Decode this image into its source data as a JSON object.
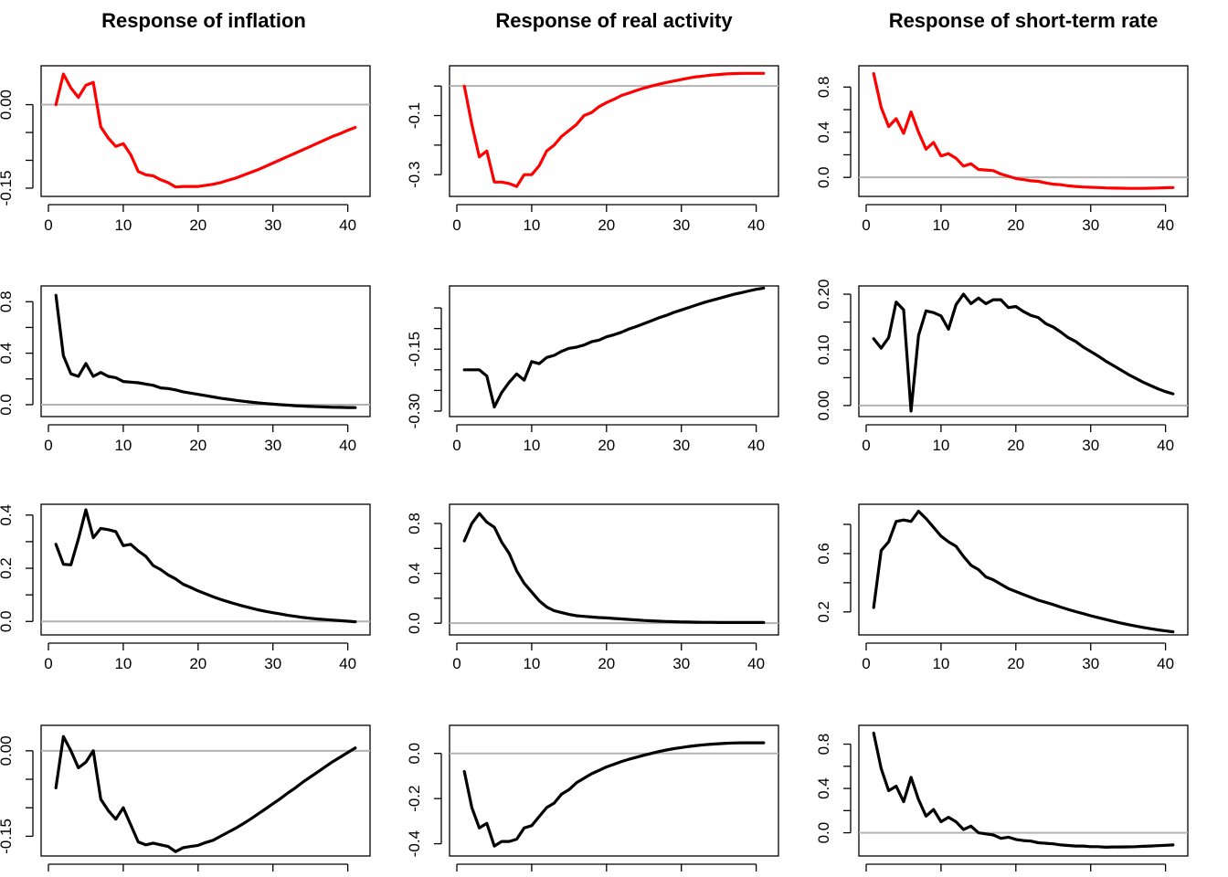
{
  "chart_data": {
    "type": "line",
    "layout": {
      "rows": 4,
      "columns": 3
    },
    "column_titles": [
      "Response of inflation",
      "Response of real activity",
      "Response of short-term rate"
    ],
    "colors": {
      "highlight": "#ff0000",
      "line": "#000000",
      "zero_line": "#b3b3b3",
      "axis": "#000000"
    },
    "x_ticks": [
      0,
      10,
      20,
      30,
      40
    ],
    "panels": [
      {
        "row": 1,
        "col": 1,
        "color": "#ff0000",
        "xlim": [
          0,
          42
        ],
        "ylim": [
          -0.155,
          0.06
        ],
        "yticks": [
          0.0,
          -0.05,
          -0.1,
          -0.15
        ],
        "ytick_labels": [
          "0.00",
          "",
          "",
          "-0.15"
        ],
        "xtick_labels_shown": true,
        "values": [
          0.0,
          0.055,
          0.03,
          0.013,
          0.035,
          0.04,
          -0.04,
          -0.06,
          -0.075,
          -0.07,
          -0.09,
          -0.12,
          -0.126,
          -0.128,
          -0.135,
          -0.14,
          -0.148,
          -0.147,
          -0.147,
          -0.147,
          -0.145,
          -0.143,
          -0.14,
          -0.136,
          -0.132,
          -0.127,
          -0.122,
          -0.117,
          -0.111,
          -0.105,
          -0.099,
          -0.093,
          -0.087,
          -0.081,
          -0.075,
          -0.069,
          -0.063,
          -0.057,
          -0.052,
          -0.046,
          -0.041
        ]
      },
      {
        "row": 1,
        "col": 2,
        "color": "#ff0000",
        "xlim": [
          0,
          42
        ],
        "ylim": [
          -0.355,
          0.05
        ],
        "yticks": [
          0.0,
          -0.1,
          -0.2,
          -0.3
        ],
        "ytick_labels": [
          "",
          "-0.1",
          "",
          "-0.3"
        ],
        "xtick_labels_shown": true,
        "values": [
          0.0,
          -0.13,
          -0.24,
          -0.22,
          -0.325,
          -0.325,
          -0.33,
          -0.34,
          -0.3,
          -0.3,
          -0.27,
          -0.22,
          -0.2,
          -0.17,
          -0.15,
          -0.13,
          -0.1,
          -0.09,
          -0.07,
          -0.056,
          -0.045,
          -0.032,
          -0.024,
          -0.015,
          -0.007,
          0.0,
          0.006,
          0.012,
          0.017,
          0.022,
          0.027,
          0.031,
          0.034,
          0.037,
          0.039,
          0.041,
          0.042,
          0.043,
          0.043,
          0.043,
          0.043
        ]
      },
      {
        "row": 1,
        "col": 3,
        "color": "#ff0000",
        "xlim": [
          0,
          42
        ],
        "ylim": [
          -0.12,
          0.94
        ],
        "yticks": [
          0.0,
          0.2,
          0.4,
          0.6,
          0.8
        ],
        "ytick_labels": [
          "0.0",
          "",
          "0.4",
          "",
          "0.8"
        ],
        "xtick_labels_shown": true,
        "values": [
          0.92,
          0.62,
          0.45,
          0.52,
          0.39,
          0.58,
          0.4,
          0.25,
          0.31,
          0.19,
          0.21,
          0.17,
          0.1,
          0.12,
          0.07,
          0.065,
          0.06,
          0.03,
          0.01,
          -0.01,
          -0.02,
          -0.03,
          -0.035,
          -0.05,
          -0.06,
          -0.065,
          -0.075,
          -0.08,
          -0.085,
          -0.088,
          -0.09,
          -0.093,
          -0.095,
          -0.096,
          -0.097,
          -0.097,
          -0.097,
          -0.096,
          -0.094,
          -0.092,
          -0.09
        ]
      },
      {
        "row": 2,
        "col": 1,
        "color": "#000000",
        "xlim": [
          0,
          42
        ],
        "ylim": [
          -0.05,
          0.88
        ],
        "yticks": [
          0.0,
          0.2,
          0.4,
          0.6,
          0.8
        ],
        "ytick_labels": [
          "0.0",
          "",
          "0.4",
          "",
          "0.8"
        ],
        "xtick_labels_shown": true,
        "values": [
          0.85,
          0.38,
          0.24,
          0.22,
          0.32,
          0.22,
          0.25,
          0.22,
          0.21,
          0.18,
          0.175,
          0.17,
          0.16,
          0.15,
          0.13,
          0.125,
          0.115,
          0.1,
          0.09,
          0.08,
          0.07,
          0.06,
          0.05,
          0.042,
          0.034,
          0.027,
          0.02,
          0.014,
          0.009,
          0.004,
          0.0,
          -0.004,
          -0.008,
          -0.011,
          -0.014,
          -0.016,
          -0.018,
          -0.02,
          -0.021,
          -0.022,
          -0.023
        ]
      },
      {
        "row": 2,
        "col": 2,
        "color": "#000000",
        "xlim": [
          0,
          42
        ],
        "ylim": [
          -0.3,
          -0.01
        ],
        "yticks": [
          -0.05,
          -0.1,
          -0.15,
          -0.2,
          -0.25,
          -0.3
        ],
        "ytick_labels": [
          "",
          "",
          "-0.15",
          "",
          "",
          "-0.30"
        ],
        "xtick_labels_shown": true,
        "values": [
          -0.2,
          -0.2,
          -0.2,
          -0.215,
          -0.29,
          -0.255,
          -0.23,
          -0.21,
          -0.225,
          -0.18,
          -0.185,
          -0.17,
          -0.165,
          -0.155,
          -0.148,
          -0.145,
          -0.14,
          -0.132,
          -0.128,
          -0.12,
          -0.115,
          -0.109,
          -0.101,
          -0.095,
          -0.088,
          -0.081,
          -0.074,
          -0.068,
          -0.061,
          -0.055,
          -0.049,
          -0.043,
          -0.037,
          -0.032,
          -0.027,
          -0.022,
          -0.017,
          -0.013,
          -0.009,
          -0.005,
          -0.002
        ]
      },
      {
        "row": 2,
        "col": 3,
        "color": "#000000",
        "xlim": [
          0,
          42
        ],
        "ylim": [
          -0.01,
          0.205
        ],
        "yticks": [
          0.0,
          0.05,
          0.1,
          0.15,
          0.2
        ],
        "ytick_labels": [
          "0.00",
          "",
          "0.10",
          "",
          "0.20"
        ],
        "xtick_labels_shown": true,
        "values": [
          0.12,
          0.103,
          0.122,
          0.186,
          0.172,
          -0.01,
          0.126,
          0.17,
          0.167,
          0.161,
          0.137,
          0.181,
          0.2,
          0.183,
          0.193,
          0.183,
          0.19,
          0.19,
          0.176,
          0.178,
          0.169,
          0.162,
          0.158,
          0.147,
          0.141,
          0.132,
          0.122,
          0.115,
          0.105,
          0.097,
          0.089,
          0.08,
          0.072,
          0.064,
          0.056,
          0.049,
          0.042,
          0.036,
          0.03,
          0.025,
          0.021
        ]
      },
      {
        "row": 3,
        "col": 1,
        "color": "#000000",
        "xlim": [
          0,
          42
        ],
        "ylim": [
          -0.03,
          0.42
        ],
        "yticks": [
          0.0,
          0.1,
          0.2,
          0.3,
          0.4
        ],
        "ytick_labels": [
          "0.0",
          "",
          "0.2",
          "",
          "0.4"
        ],
        "xtick_labels_shown": true,
        "values": [
          0.29,
          0.215,
          0.213,
          0.31,
          0.42,
          0.315,
          0.35,
          0.345,
          0.338,
          0.285,
          0.29,
          0.265,
          0.245,
          0.21,
          0.195,
          0.175,
          0.16,
          0.14,
          0.128,
          0.115,
          0.104,
          0.093,
          0.083,
          0.074,
          0.066,
          0.058,
          0.051,
          0.044,
          0.038,
          0.033,
          0.028,
          0.023,
          0.019,
          0.015,
          0.012,
          0.009,
          0.007,
          0.005,
          0.003,
          0.001,
          -0.001
        ]
      },
      {
        "row": 3,
        "col": 2,
        "color": "#000000",
        "xlim": [
          0,
          42
        ],
        "ylim": [
          -0.05,
          0.91
        ],
        "yticks": [
          0.0,
          0.2,
          0.4,
          0.6,
          0.8
        ],
        "ytick_labels": [
          "0.0",
          "",
          "0.4",
          "",
          "0.8"
        ],
        "xtick_labels_shown": true,
        "values": [
          0.66,
          0.8,
          0.88,
          0.81,
          0.77,
          0.65,
          0.56,
          0.42,
          0.32,
          0.25,
          0.18,
          0.13,
          0.1,
          0.085,
          0.07,
          0.06,
          0.055,
          0.05,
          0.045,
          0.042,
          0.038,
          0.034,
          0.03,
          0.026,
          0.022,
          0.019,
          0.016,
          0.014,
          0.012,
          0.01,
          0.009,
          0.008,
          0.007,
          0.007,
          0.006,
          0.006,
          0.006,
          0.006,
          0.006,
          0.006,
          0.006
        ]
      },
      {
        "row": 3,
        "col": 3,
        "color": "#000000",
        "xlim": [
          0,
          42
        ],
        "ylim": [
          0.08,
          0.9
        ],
        "yticks": [
          0.2,
          0.4,
          0.6,
          0.8
        ],
        "ytick_labels": [
          "0.2",
          "",
          "0.6",
          ""
        ],
        "xtick_labels_shown": true,
        "values": [
          0.23,
          0.62,
          0.68,
          0.82,
          0.83,
          0.82,
          0.89,
          0.84,
          0.78,
          0.72,
          0.68,
          0.65,
          0.58,
          0.52,
          0.49,
          0.44,
          0.42,
          0.39,
          0.36,
          0.34,
          0.32,
          0.3,
          0.28,
          0.265,
          0.25,
          0.233,
          0.217,
          0.202,
          0.188,
          0.174,
          0.161,
          0.148,
          0.136,
          0.124,
          0.113,
          0.103,
          0.094,
          0.085,
          0.077,
          0.07,
          0.064
        ]
      },
      {
        "row": 4,
        "col": 1,
        "color": "#000000",
        "xlim": [
          0,
          42
        ],
        "ylim": [
          -0.175,
          0.035
        ],
        "yticks": [
          0.0,
          -0.05,
          -0.1,
          -0.15
        ],
        "ytick_labels": [
          "0.00",
          "",
          "",
          "-0.15"
        ],
        "xtick_labels_shown": false,
        "values": [
          -0.065,
          0.025,
          0.0,
          -0.03,
          -0.02,
          0.0,
          -0.085,
          -0.105,
          -0.12,
          -0.1,
          -0.13,
          -0.16,
          -0.165,
          -0.162,
          -0.165,
          -0.168,
          -0.177,
          -0.17,
          -0.168,
          -0.166,
          -0.161,
          -0.157,
          -0.15,
          -0.143,
          -0.136,
          -0.128,
          -0.12,
          -0.111,
          -0.102,
          -0.093,
          -0.084,
          -0.074,
          -0.065,
          -0.055,
          -0.046,
          -0.037,
          -0.028,
          -0.019,
          -0.011,
          -0.003,
          0.005
        ]
      },
      {
        "row": 4,
        "col": 2,
        "color": "#000000",
        "xlim": [
          0,
          42
        ],
        "ylim": [
          -0.43,
          0.1
        ],
        "yticks": [
          0.0,
          -0.2,
          -0.4
        ],
        "ytick_labels": [
          "0.0",
          "-0.2",
          "-0.4"
        ],
        "xtick_labels_shown": false,
        "values": [
          -0.08,
          -0.24,
          -0.33,
          -0.31,
          -0.41,
          -0.39,
          -0.39,
          -0.38,
          -0.33,
          -0.32,
          -0.28,
          -0.24,
          -0.22,
          -0.18,
          -0.16,
          -0.13,
          -0.11,
          -0.09,
          -0.075,
          -0.06,
          -0.048,
          -0.036,
          -0.026,
          -0.017,
          -0.008,
          0.0,
          0.008,
          0.015,
          0.021,
          0.026,
          0.031,
          0.035,
          0.038,
          0.041,
          0.043,
          0.045,
          0.046,
          0.047,
          0.047,
          0.047,
          0.047
        ]
      },
      {
        "row": 4,
        "col": 3,
        "color": "#000000",
        "xlim": [
          0,
          42
        ],
        "ylim": [
          -0.16,
          0.92
        ],
        "yticks": [
          0.0,
          0.2,
          0.4,
          0.6,
          0.8
        ],
        "ytick_labels": [
          "0.0",
          "",
          "0.4",
          "",
          "0.8"
        ],
        "xtick_labels_shown": false,
        "values": [
          0.9,
          0.58,
          0.38,
          0.42,
          0.28,
          0.5,
          0.3,
          0.15,
          0.21,
          0.1,
          0.14,
          0.1,
          0.03,
          0.06,
          0.0,
          -0.01,
          -0.02,
          -0.05,
          -0.04,
          -0.06,
          -0.07,
          -0.075,
          -0.09,
          -0.095,
          -0.1,
          -0.11,
          -0.115,
          -0.12,
          -0.12,
          -0.125,
          -0.125,
          -0.13,
          -0.128,
          -0.128,
          -0.127,
          -0.125,
          -0.122,
          -0.12,
          -0.116,
          -0.113,
          -0.11
        ]
      }
    ]
  }
}
